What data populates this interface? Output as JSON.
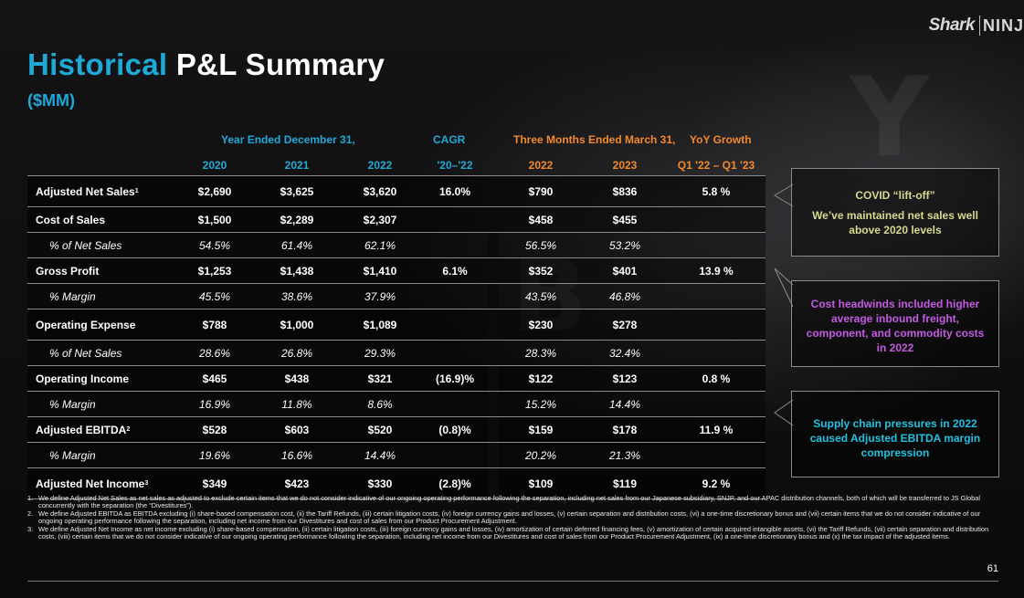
{
  "logo": {
    "brand1": "Shark",
    "brand2": "NINJ"
  },
  "title": {
    "part1": "Historical",
    "part2": "P&L Summary"
  },
  "subtitle": "($MM)",
  "headers": {
    "year_group": "Year Ended December 31,",
    "cagr": "CAGR",
    "quarter_group": "Three Months Ended March 31,",
    "yoy": "YoY Growth",
    "columns": [
      "2020",
      "2021",
      "2022",
      "'20–'22",
      "2022",
      "2023",
      "Q1 '22 – Q1 '23"
    ]
  },
  "rows": [
    {
      "label": "Adjusted Net Sales",
      "sup": "1",
      "type": "main",
      "values": [
        "$2,690",
        "$3,625",
        "$3,620",
        "16.0%",
        "$790",
        "$836",
        "5.8 %"
      ]
    },
    {
      "label": "Cost of Sales",
      "sup": "",
      "type": "main",
      "values": [
        "$1,500",
        "$2,289",
        "$2,307",
        "",
        "$458",
        "$455",
        ""
      ]
    },
    {
      "label": "% of Net Sales",
      "sup": "",
      "type": "sub",
      "values": [
        "54.5%",
        "61.4%",
        "62.1%",
        "",
        "56.5%",
        "53.2%",
        ""
      ]
    },
    {
      "label": "Gross Profit",
      "sup": "",
      "type": "main",
      "values": [
        "$1,253",
        "$1,438",
        "$1,410",
        "6.1%",
        "$352",
        "$401",
        "13.9 %"
      ]
    },
    {
      "label": "% Margin",
      "sup": "",
      "type": "sub",
      "values": [
        "45.5%",
        "38.6%",
        "37.9%",
        "",
        "43.5%",
        "46.8%",
        ""
      ]
    },
    {
      "label": "Operating Expense",
      "sup": "",
      "type": "main",
      "values": [
        "$788",
        "$1,000",
        "$1,089",
        "",
        "$230",
        "$278",
        ""
      ]
    },
    {
      "label": "% of Net Sales",
      "sup": "",
      "type": "sub",
      "values": [
        "28.6%",
        "26.8%",
        "29.3%",
        "",
        "28.3%",
        "32.4%",
        ""
      ]
    },
    {
      "label": "Operating Income",
      "sup": "",
      "type": "main",
      "values": [
        "$465",
        "$438",
        "$321",
        "(16.9)%",
        "$122",
        "$123",
        "0.8 %"
      ]
    },
    {
      "label": "% Margin",
      "sup": "",
      "type": "sub",
      "values": [
        "16.9%",
        "11.8%",
        "8.6%",
        "",
        "15.2%",
        "14.4%",
        ""
      ]
    },
    {
      "label": "Adjusted EBITDA",
      "sup": "2",
      "type": "main",
      "values": [
        "$528",
        "$603",
        "$520",
        "(0.8)%",
        "$159",
        "$178",
        "11.9 %"
      ]
    },
    {
      "label": "% Margin",
      "sup": "",
      "type": "sub",
      "values": [
        "19.6%",
        "16.6%",
        "14.4%",
        "",
        "20.2%",
        "21.3%",
        ""
      ]
    },
    {
      "label": "Adjusted Net Income",
      "sup": "3",
      "type": "main",
      "values": [
        "$349",
        "$423",
        "$330",
        "(2.8)%",
        "$109",
        "$119",
        "9.2 %"
      ]
    }
  ],
  "callouts": [
    {
      "heading": "COVID “lift-off”",
      "text": "We’ve maintained net sales well above 2020 levels",
      "color": "#d6d98c"
    },
    {
      "heading": "",
      "text": "Cost headwinds included higher average inbound freight, component, and commodity costs in 2022",
      "color": "#c35be0"
    },
    {
      "heading": "",
      "text": "Supply chain pressures in 2022 caused Adjusted EBITDA margin compression",
      "color": "#1fc2e0"
    }
  ],
  "footnotes": [
    "We define Adjusted Net Sales as net sales as adjusted to exclude certain items that we do not consider indicative of our ongoing operating performance following the separation, including net sales from our Japanese subsidiary, SNJP, and our APAC distribution channels, both of which will be transferred to JS Global concurrently with the separation (the “Divestitures”).",
    "We define Adjusted EBITDA as EBITDA excluding (i) share-based compensation cost, (ii) the Tariff Refunds, (iii) certain litigation costs, (iv) foreign currency gains and losses, (v) certain separation and distribution costs, (vi) a one-time discretionary bonus and (vii) certain items that we do not consider indicative of our ongoing operating performance following the separation, including net income from our Divestitures and cost of sales from our Product Procurement Adjustment.",
    "We define Adjusted Net Income as net income excluding (i) share-based compensation, (ii) certain litigation costs, (iii) foreign currency gains and losses, (iv) amortization of certain deferred financing fees, (v) amortization of certain acquired intangible assets, (vi) the Tariff Refunds, (vii) certain separation and distribution costs, (viii) certain items that we do not consider indicative of our ongoing operating performance following the separation, including net income from our Divestitures and cost of sales from our Product Procurement Adjustment, (ix) a one-time discretionary bonus and (x) the tax impact of the adjusted items."
  ],
  "page_number": "61"
}
